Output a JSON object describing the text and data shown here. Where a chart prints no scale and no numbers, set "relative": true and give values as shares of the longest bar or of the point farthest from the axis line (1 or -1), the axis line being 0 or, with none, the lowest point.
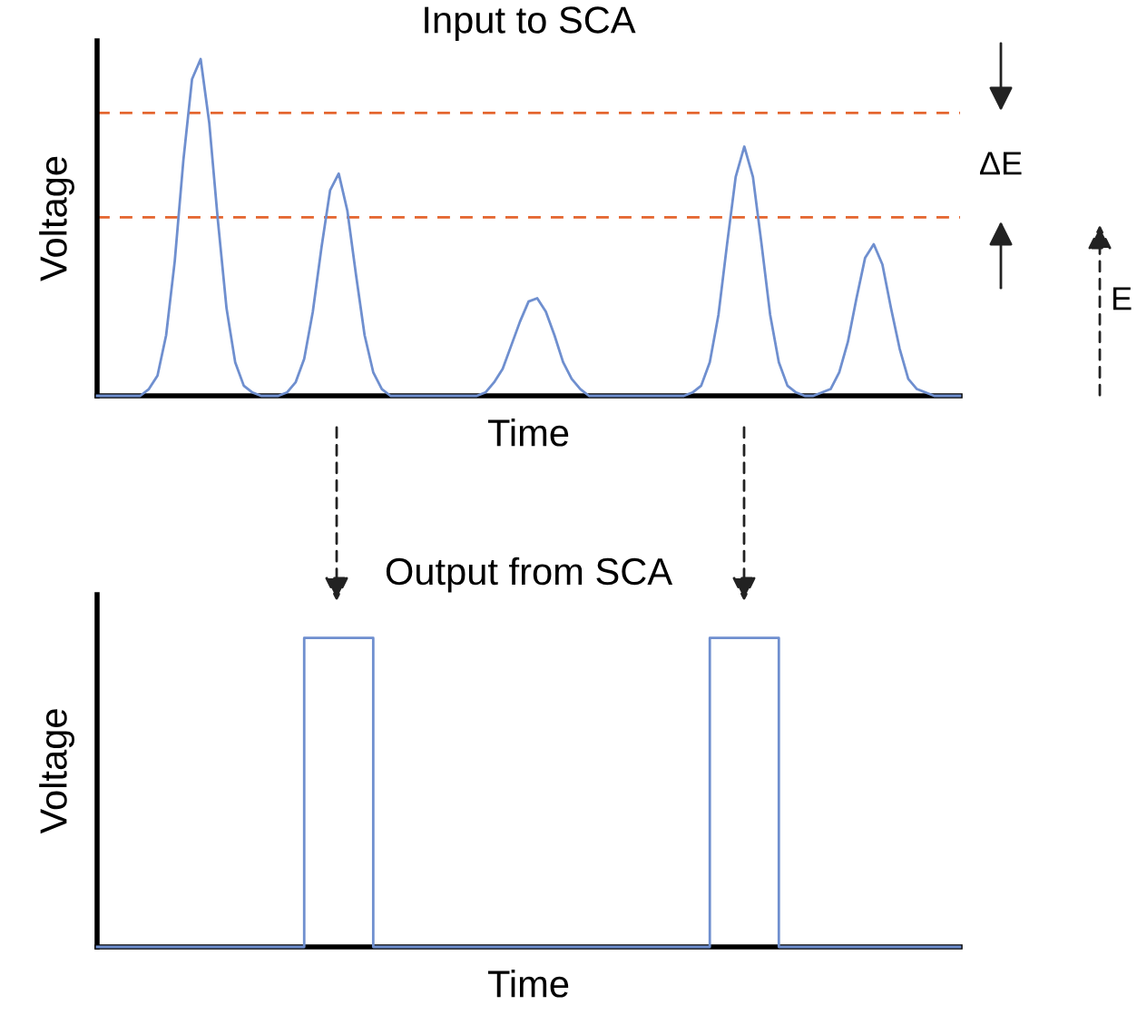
{
  "chart_data": [
    {
      "type": "line",
      "title": "Input to SCA",
      "xlabel": "Time",
      "ylabel": "Voltage",
      "relative": true,
      "tick_labels": false,
      "categories": [
        null,
        null,
        null,
        null,
        null,
        null,
        null,
        null,
        null,
        null,
        null,
        null,
        null,
        null,
        null,
        null,
        null,
        null,
        null,
        null,
        null,
        null,
        null,
        null,
        null,
        null,
        null,
        null,
        null,
        null,
        null,
        null,
        null,
        null,
        null,
        null,
        null,
        null,
        null,
        null,
        null,
        null,
        null,
        null,
        null,
        null,
        null,
        null,
        null,
        null,
        null,
        null,
        null,
        null,
        null,
        null,
        null,
        null,
        null,
        null,
        null,
        null,
        null,
        null,
        null,
        null,
        null,
        null,
        null,
        null,
        null,
        null,
        null,
        null,
        null,
        null,
        null,
        null,
        null,
        null,
        null,
        null,
        null,
        null,
        null,
        null,
        null,
        null,
        null,
        null,
        null,
        null,
        null,
        null,
        null,
        null,
        null,
        null,
        null,
        null,
        null
      ],
      "series": [
        {
          "color": "#6f8fcf",
          "values": [
            0,
            0,
            0,
            0,
            0,
            0,
            0.02,
            0.06,
            0.18,
            0.4,
            0.7,
            0.94,
            1.0,
            0.81,
            0.52,
            0.26,
            0.1,
            0.03,
            0.01,
            0,
            0,
            0,
            0.01,
            0.04,
            0.11,
            0.25,
            0.44,
            0.61,
            0.66,
            0.55,
            0.36,
            0.18,
            0.07,
            0.02,
            0,
            0,
            0,
            0,
            0,
            0,
            0,
            0,
            0,
            0,
            0,
            0.01,
            0.04,
            0.08,
            0.15,
            0.22,
            0.28,
            0.29,
            0.25,
            0.18,
            0.1,
            0.05,
            0.02,
            0,
            0,
            0,
            0,
            0,
            0,
            0,
            0,
            0,
            0,
            0,
            0,
            0.01,
            0.03,
            0.1,
            0.24,
            0.45,
            0.65,
            0.74,
            0.65,
            0.45,
            0.24,
            0.1,
            0.03,
            0.01,
            0,
            0,
            0.01,
            0.02,
            0.07,
            0.16,
            0.29,
            0.41,
            0.45,
            0.39,
            0.26,
            0.14,
            0.05,
            0.02,
            0.01,
            0,
            0,
            0,
            0
          ]
        }
      ],
      "ref_lines": [
        {
          "axis": "y",
          "value": 0.84,
          "color": "#e4662f",
          "line_style": "dashed"
        },
        {
          "axis": "y",
          "value": 0.53,
          "color": "#e4662f",
          "line_style": "dashed"
        }
      ],
      "annotations": [
        "ΔE",
        "E"
      ]
    },
    {
      "type": "step",
      "title": "Output from SCA",
      "xlabel": "Time",
      "ylabel": "Voltage",
      "relative": true,
      "tick_labels": false,
      "categories": [
        null,
        null,
        null,
        null,
        null,
        null,
        null,
        null,
        null,
        null,
        null,
        null,
        null,
        null,
        null,
        null,
        null,
        null,
        null,
        null,
        null,
        null,
        null,
        null,
        null,
        null,
        null,
        null,
        null,
        null,
        null,
        null,
        null,
        null,
        null,
        null,
        null,
        null,
        null,
        null,
        null,
        null,
        null,
        null,
        null,
        null,
        null,
        null,
        null,
        null,
        null,
        null,
        null,
        null,
        null,
        null,
        null,
        null,
        null,
        null,
        null,
        null,
        null,
        null,
        null,
        null,
        null,
        null,
        null,
        null,
        null,
        null,
        null,
        null,
        null,
        null,
        null,
        null,
        null,
        null,
        null,
        null,
        null,
        null,
        null,
        null,
        null,
        null,
        null,
        null,
        null,
        null,
        null,
        null,
        null,
        null,
        null,
        null,
        null,
        null,
        null
      ],
      "series": [
        {
          "color": "#6f8fcf",
          "values": [
            0,
            0,
            0,
            0,
            0,
            0,
            0,
            0,
            0,
            0,
            0,
            0,
            0,
            0,
            0,
            0,
            0,
            0,
            0,
            0,
            0,
            0,
            0,
            0,
            1,
            1,
            1,
            1,
            1,
            1,
            1,
            1,
            0,
            0,
            0,
            0,
            0,
            0,
            0,
            0,
            0,
            0,
            0,
            0,
            0,
            0,
            0,
            0,
            0,
            0,
            0,
            0,
            0,
            0,
            0,
            0,
            0,
            0,
            0,
            0,
            0,
            0,
            0,
            0,
            0,
            0,
            0,
            0,
            0,
            0,
            0,
            1,
            1,
            1,
            1,
            1,
            1,
            1,
            1,
            0,
            0,
            0,
            0,
            0,
            0,
            0,
            0,
            0,
            0,
            0,
            0,
            0,
            0,
            0,
            0,
            0,
            0,
            0,
            0,
            0,
            0
          ]
        }
      ]
    }
  ]
}
